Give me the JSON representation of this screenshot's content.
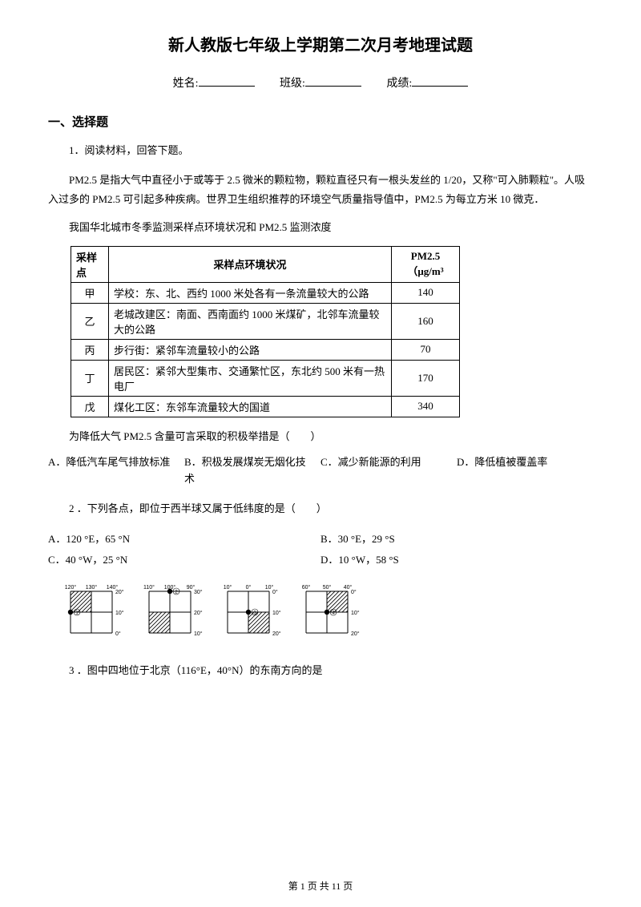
{
  "title": "新人教版七年级上学期第二次月考地理试题",
  "info": {
    "name_label": "姓名:",
    "class_label": "班级:",
    "score_label": "成绩:"
  },
  "section1": "一、选择题",
  "q1": {
    "num": "1．阅读材料，回答下题。",
    "p1": "PM2.5 是指大气中直径小于或等于 2.5 微米的颗粒物，颗粒直径只有一根头发丝的 1/20，又称\"可入肺颗粒\"。人吸入过多的 PM2.5 可引起多种疾病。世界卫生组织推荐的环境空气质量指导值中，PM2.5 为每立方米 10 微克．",
    "p2": "我国华北城市冬季监测采样点环境状况和 PM2.5 监测浓度",
    "table": {
      "header": {
        "c1": "采样点",
        "c2": "采样点环境状况",
        "c3_l1": "PM2.5",
        "c3_l2": "（μg/m³"
      },
      "rows": [
        {
          "pt": "甲",
          "desc": "学校：东、北、西约 1000 米处各有一条流量较大的公路",
          "val": "140"
        },
        {
          "pt": "乙",
          "desc": "老城改建区：南面、西南面约 1000 米煤矿，北邻车流量较大的公路",
          "val": "160"
        },
        {
          "pt": "丙",
          "desc": "步行街：紧邻车流量较小的公路",
          "val": "70"
        },
        {
          "pt": "丁",
          "desc": "居民区：紧邻大型集市、交通繁忙区，东北约 500 米有一热电厂",
          "val": "170"
        },
        {
          "pt": "戊",
          "desc": "煤化工区：东邻车流量较大的国道",
          "val": "340"
        }
      ]
    },
    "stem": "为降低大气 PM2.5 含量可言采取的积极举措是（　　）",
    "options": {
      "a": "A．降低汽车尾气排放标准",
      "b": "B．积极发展煤炭无烟化技术",
      "c": "C．减少新能源的利用",
      "d": "D．降低植被覆盖率"
    }
  },
  "q2": {
    "num": "2 ．下列各点，即位于西半球又属于低纬度的是（　　）",
    "options": {
      "a": "A．120 °E，65 °N",
      "b": "B．30 °E，29 °S",
      "c": "C．40 °W，25 °N",
      "d": "D．10 °W，58 °S"
    }
  },
  "diagram": {
    "panels": [
      {
        "top_labels": [
          "120°",
          "130°",
          "140°"
        ],
        "right_labels": [
          "20°",
          "10°",
          "0°"
        ],
        "marker_col": 0,
        "marker_row": 1,
        "fill_col": 0,
        "fill_row": 0
      },
      {
        "top_labels": [
          "110°",
          "100°",
          "90°"
        ],
        "right_labels": [
          "30°",
          "20°",
          "10°"
        ],
        "marker_col": 1,
        "marker_row": 0,
        "fill_col": 0,
        "fill_row": 1
      },
      {
        "top_labels": [
          "10°",
          "0°",
          "10°"
        ],
        "right_labels": [
          "0°",
          "-10°",
          "-20°"
        ],
        "marker_col": 1,
        "marker_row": 1,
        "fill_col": 1,
        "fill_row": 1
      },
      {
        "top_labels": [
          "60°",
          "50°",
          "40°"
        ],
        "right_labels": [
          "0°",
          "-10°",
          "-20°"
        ],
        "marker_col": 1,
        "marker_row": 1,
        "fill_col": 1,
        "fill_row": 0
      }
    ],
    "cell": 26,
    "gap": 46,
    "style": {
      "stroke": "#000000",
      "fontsize": 7,
      "marker_radius": 3.2
    }
  },
  "q3": {
    "num": "3 ．图中四地位于北京（116°E，40°N）的东南方向的是"
  },
  "footer": "第 1 页 共 11 页"
}
